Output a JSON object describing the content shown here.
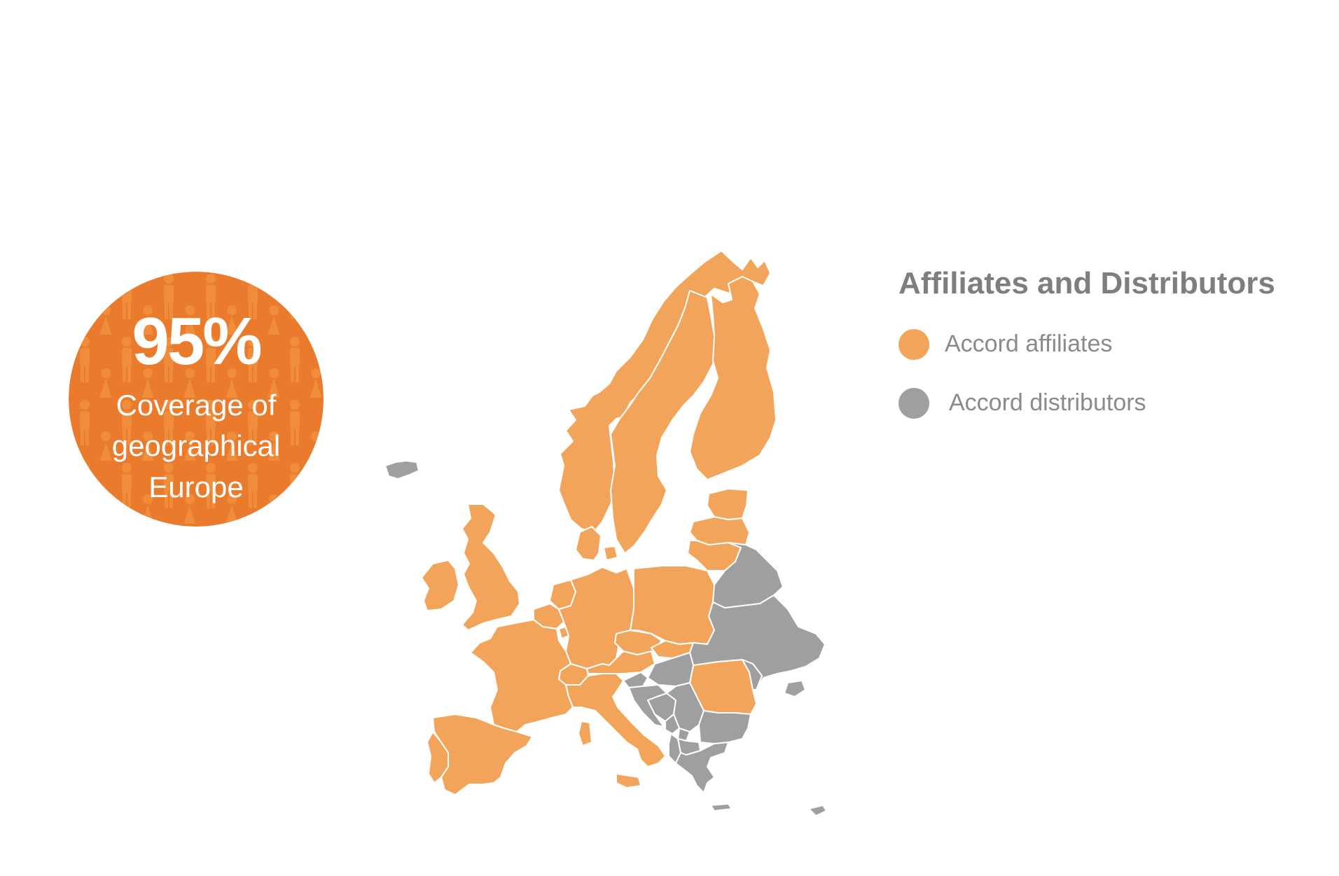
{
  "colors": {
    "affiliate": "#f2a55a",
    "distributor": "#a09fa0",
    "badge": "#eb7b2c",
    "text_gray": "#7e7e7e"
  },
  "badge": {
    "percent": "95%",
    "line1": "Coverage of",
    "line2": "geographical",
    "line3": "Europe",
    "icon": "people-pattern-icon"
  },
  "legend": {
    "title": "Affiliates and Distributors",
    "items": [
      {
        "label": "Accord affiliates",
        "category": "affiliate"
      },
      {
        "label": "Accord distributors",
        "category": "distributor"
      }
    ]
  },
  "map": {
    "affiliate_countries": [
      "Norway",
      "Sweden",
      "Finland",
      "Estonia",
      "Latvia",
      "Lithuania",
      "Denmark",
      "United Kingdom",
      "Ireland",
      "Netherlands",
      "Belgium",
      "Luxembourg",
      "Germany",
      "Poland",
      "Czech Republic",
      "Slovakia",
      "Austria",
      "Switzerland",
      "France",
      "Spain",
      "Portugal",
      "Italy",
      "Romania"
    ],
    "distributor_countries": [
      "Iceland",
      "Belarus",
      "Ukraine",
      "Moldova",
      "Hungary",
      "Slovenia",
      "Croatia",
      "Bosnia and Herzegovina",
      "Serbia",
      "Montenegro",
      "Kosovo",
      "Albania",
      "North Macedonia",
      "Bulgaria",
      "Greece",
      "Cyprus"
    ]
  }
}
